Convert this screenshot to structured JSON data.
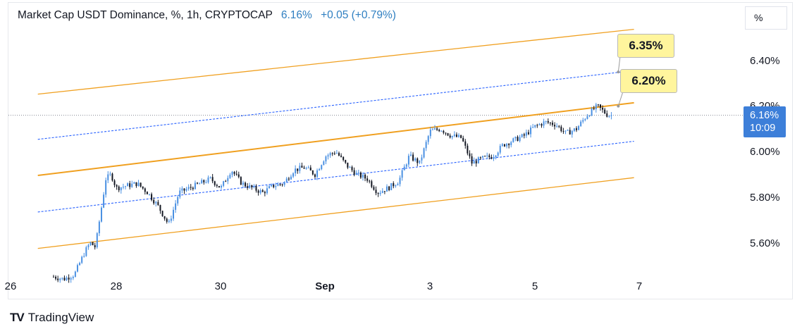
{
  "header": {
    "symbol_label": "Market Cap USDT Dominance, %, 1h, CRYPTOCAP",
    "last_price": "6.16%",
    "change": "+0.05 (+0.79%)"
  },
  "scale_button": "%",
  "price_tag": {
    "value": "6.16%",
    "countdown": "10:09"
  },
  "callouts": [
    {
      "text": "6.35%",
      "value": 6.35
    },
    {
      "text": "6.20%",
      "value": 6.2
    }
  ],
  "brand": {
    "name": "TradingView",
    "logo": "TV"
  },
  "colors": {
    "channel": "#f0a020",
    "midline": "#2962ff",
    "candle_up": "#4a90e2",
    "candle_down": "#131722",
    "callout_bg": "#fff59d"
  },
  "chart_data": {
    "type": "candlestick",
    "title": "Market Cap USDT Dominance",
    "timeframe": "1h",
    "source": "CRYPTOCAP",
    "y_axis": {
      "unit": "%",
      "ticks": [
        "6.40%",
        "6.20%",
        "6.00%",
        "5.80%",
        "5.60%"
      ],
      "tick_values": [
        6.4,
        6.2,
        6.0,
        5.8,
        5.6
      ],
      "ylim": [
        5.47,
        6.62
      ]
    },
    "x_axis": {
      "ticks": [
        "26",
        "28",
        "30",
        "Sep",
        "3",
        "5",
        "7"
      ],
      "tick_days": [
        26,
        28,
        30,
        32,
        34,
        36,
        38
      ]
    },
    "current_price": 6.16,
    "close_series": {
      "x_days": [
        26.8,
        27.0,
        27.2,
        27.4,
        27.5,
        27.6,
        27.8,
        27.9,
        28.0,
        28.2,
        28.4,
        28.6,
        28.8,
        29.0,
        29.2,
        29.4,
        29.6,
        29.8,
        30.0,
        30.2,
        30.4,
        30.6,
        30.8,
        31.0,
        31.2,
        31.4,
        31.6,
        31.8,
        32.0,
        32.2,
        32.4,
        32.6,
        32.8,
        33.0,
        33.2,
        33.4,
        33.6,
        33.8,
        34.0,
        34.2,
        34.4,
        34.6,
        34.8,
        35.0,
        35.2,
        35.4,
        35.6,
        35.8,
        36.0,
        36.2,
        36.4,
        36.6,
        36.8,
        37.0,
        37.2,
        37.4,
        37.5
      ],
      "values": [
        5.45,
        5.44,
        5.46,
        5.56,
        5.6,
        5.58,
        5.88,
        5.9,
        5.84,
        5.85,
        5.86,
        5.82,
        5.76,
        5.68,
        5.82,
        5.84,
        5.86,
        5.88,
        5.84,
        5.92,
        5.86,
        5.84,
        5.82,
        5.85,
        5.86,
        5.92,
        5.93,
        5.9,
        5.98,
        6.0,
        5.94,
        5.9,
        5.88,
        5.82,
        5.84,
        5.87,
        5.98,
        5.95,
        6.09,
        6.1,
        6.07,
        6.06,
        5.95,
        5.97,
        5.98,
        6.03,
        6.05,
        6.07,
        6.11,
        6.13,
        6.12,
        6.08,
        6.1,
        6.16,
        6.2,
        6.16,
        6.16
      ]
    },
    "channel": {
      "upper": {
        "start": [
          25.6,
          6.23
        ],
        "end": [
          38.8,
          6.56
        ]
      },
      "upper_inner": {
        "start": [
          25.6,
          6.03
        ],
        "end": [
          38.8,
          6.38
        ]
      },
      "middle": {
        "start": [
          25.6,
          5.87
        ],
        "end": [
          38.8,
          6.24
        ]
      },
      "lower_inner": {
        "start": [
          25.6,
          5.71
        ],
        "end": [
          38.8,
          6.07
        ]
      },
      "lower": {
        "start": [
          25.6,
          5.55
        ],
        "end": [
          38.8,
          5.91
        ]
      }
    },
    "annotations": [
      {
        "label": "6.35%",
        "day": 37.6,
        "value": 6.35
      },
      {
        "label": "6.20%",
        "day": 37.6,
        "value": 6.2
      }
    ]
  }
}
